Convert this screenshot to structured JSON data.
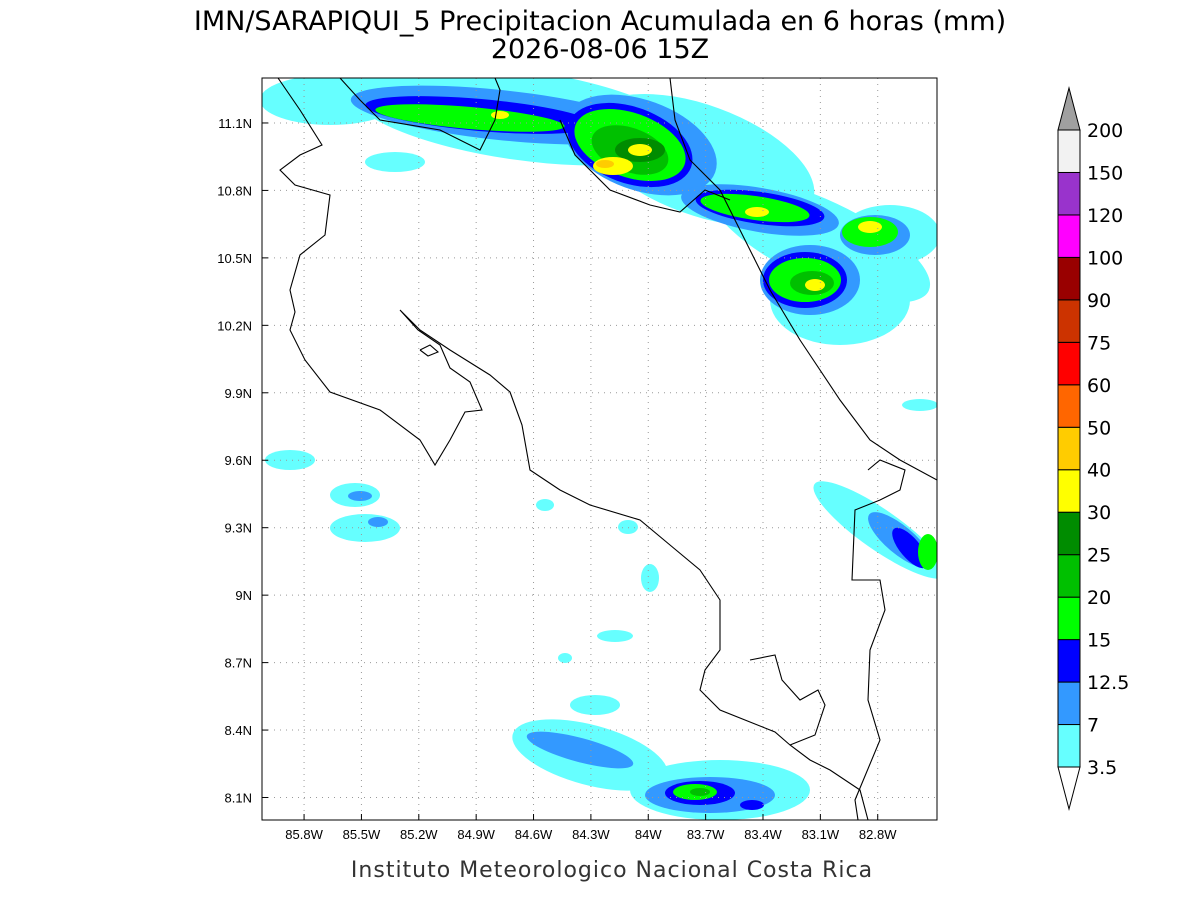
{
  "map": {
    "title": "IMN/SARAPIQUI_5 Precipitacion Acumulada en 6 horas (mm)",
    "subtitle": "2026-08-06 15Z",
    "xlim": [
      -86.02,
      -82.49
    ],
    "ylim": [
      8.0,
      11.3
    ],
    "xticks": [
      {
        "value": -85.8,
        "label": "85.8W"
      },
      {
        "value": -85.5,
        "label": "85.5W"
      },
      {
        "value": -85.2,
        "label": "85.2W"
      },
      {
        "value": -84.9,
        "label": "84.9W"
      },
      {
        "value": -84.6,
        "label": "84.6W"
      },
      {
        "value": -84.3,
        "label": "84.3W"
      },
      {
        "value": -84.0,
        "label": "84W"
      },
      {
        "value": -83.7,
        "label": "83.7W"
      },
      {
        "value": -83.4,
        "label": "83.4W"
      },
      {
        "value": -83.1,
        "label": "83.1W"
      },
      {
        "value": -82.8,
        "label": "82.8W"
      }
    ],
    "yticks": [
      {
        "value": 8.1,
        "label": "8.1N"
      },
      {
        "value": 8.4,
        "label": "8.4N"
      },
      {
        "value": 8.7,
        "label": "8.7N"
      },
      {
        "value": 9.0,
        "label": "9N"
      },
      {
        "value": 9.3,
        "label": "9.3N"
      },
      {
        "value": 9.6,
        "label": "9.6N"
      },
      {
        "value": 9.9,
        "label": "9.9N"
      },
      {
        "value": 10.2,
        "label": "10.2N"
      },
      {
        "value": 10.5,
        "label": "10.5N"
      },
      {
        "value": 10.8,
        "label": "10.8N"
      },
      {
        "value": 11.1,
        "label": "11.1N"
      }
    ],
    "grid": true,
    "colorbar": {
      "levels": [
        3.5,
        7,
        12.5,
        15,
        20,
        25,
        30,
        40,
        50,
        60,
        75,
        90,
        100,
        120,
        150,
        200
      ],
      "colors": [
        "#ffffff",
        "#66ffff",
        "#3399ff",
        "#0000ff",
        "#00ff00",
        "#00c000",
        "#008c00",
        "#ffff00",
        "#ffcc00",
        "#ff6600",
        "#ff0000",
        "#cc3300",
        "#990000",
        "#ff00ff",
        "#9933cc",
        "#f2f2f2",
        "#a0a0a0"
      ]
    },
    "footer": "Instituto Meteorologico Nacional Costa Rica"
  }
}
